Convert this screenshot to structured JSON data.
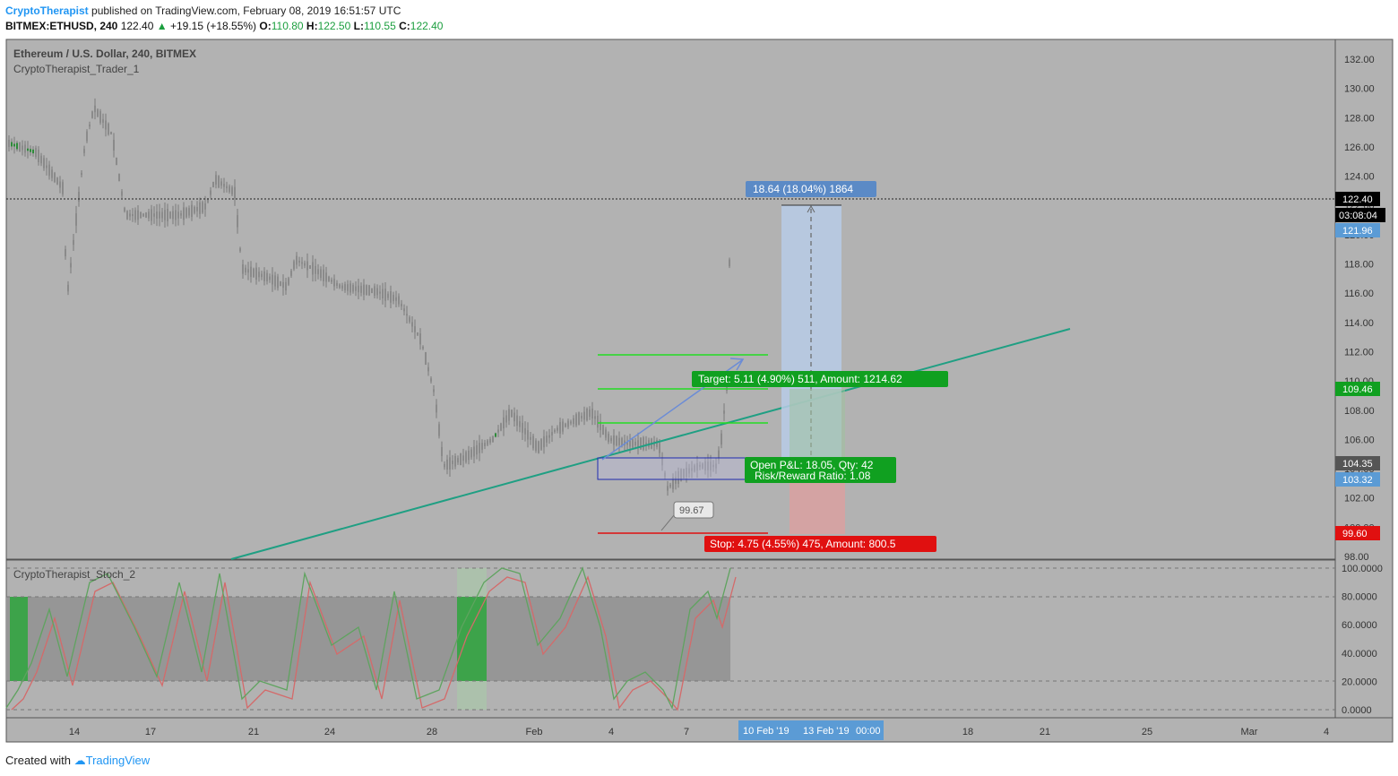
{
  "header": {
    "author": "CryptoTherapist",
    "published_text": "published on TradingView.com, February 08, 2019 16:51:57 UTC",
    "symbol": "BITMEX:ETHUSD, 240",
    "last_price": "122.40",
    "change": "+19.15 (+18.55%)",
    "open_label": "O:",
    "open": "110.80",
    "high_label": "H:",
    "high": "122.50",
    "low_label": "L:",
    "low": "110.55",
    "close_label": "C:",
    "close": "122.40"
  },
  "chart": {
    "title": "Ethereum / U.S. Dollar, 240, BITMEX",
    "indicator_1": "CryptoTherapist_Trader_1",
    "indicator_2": "CryptoTherapist_Stoch_2",
    "price_axis": [
      "132.00",
      "130.00",
      "128.00",
      "126.00",
      "124.00",
      "122.00",
      "120.00",
      "118.00",
      "116.00",
      "114.00",
      "112.00",
      "110.00",
      "108.00",
      "106.00",
      "104.00",
      "102.00",
      "100.00",
      "98.00"
    ],
    "stoch_axis": [
      "100.0000",
      "80.0000",
      "60.0000",
      "40.0000",
      "20.0000",
      "0.0000"
    ],
    "time_axis": [
      "14",
      "17",
      "21",
      "24",
      "28",
      "Feb",
      "4",
      "7",
      "18",
      "21",
      "25",
      "Mar",
      "4"
    ],
    "time_highlights": [
      "10 Feb '19",
      "13 Feb '19",
      "00:00"
    ],
    "price_tags": {
      "last": "122.40",
      "countdown": "03:08:04",
      "tag_blue_top": "121.96",
      "tag_green": "109.46",
      "tag_gray": "104.35",
      "tag_blue_mid": "103.32",
      "tag_red": "99.60"
    },
    "measure_label": "18.64 (18.04%) 1864",
    "low_label": "99.67",
    "target_label": "Target: 5.11 (4.90%) 511, Amount: 1214.62",
    "pnl_label": "Open P&L: 18.05, Qty: 42",
    "rr_label": "Risk/Reward Ratio: 1.08",
    "stop_label": "Stop: 4.75 (4.55%) 475, Amount: 800.5"
  },
  "colors": {
    "chart_bg": "#b2b2b2",
    "candle": "#8a8a8a",
    "trendline": "#1f9f83",
    "target_green": "#10a020",
    "stop_red": "#e01010",
    "measure_blue": "#5b8ac6",
    "stoch_k": "#5fa35f",
    "stoch_d": "#d46a6a"
  },
  "footer": {
    "created_with": "Created with",
    "brand": "TradingView"
  }
}
